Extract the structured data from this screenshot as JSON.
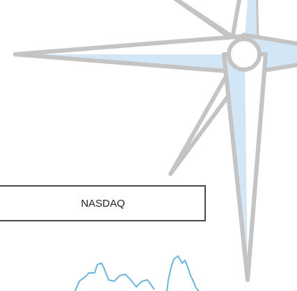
{
  "label": "NASDAQ"
}
